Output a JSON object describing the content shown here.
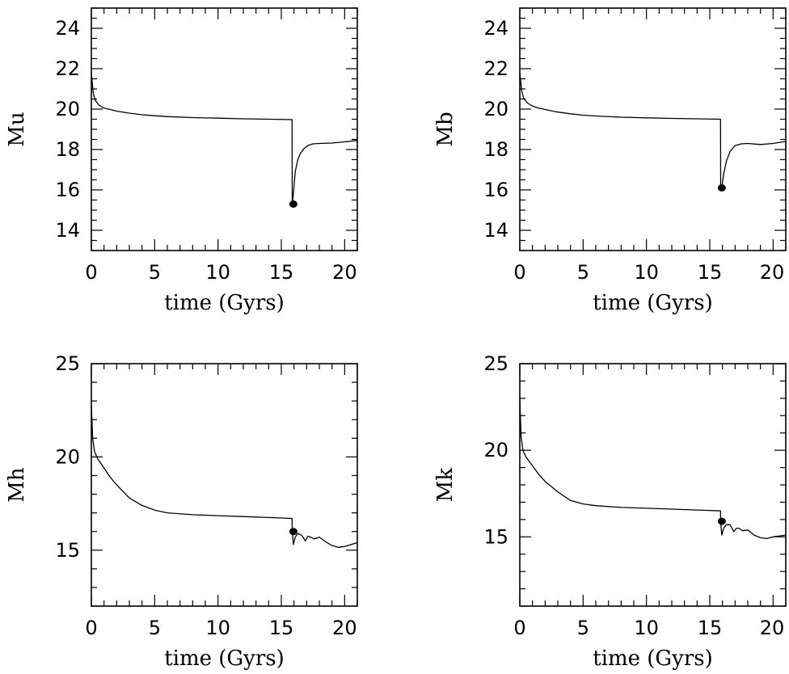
{
  "chart_data": [
    {
      "type": "line",
      "xlabel": "time (Gyrs)",
      "ylabel": "Mu",
      "xlim": [
        0,
        21
      ],
      "ylim": [
        13,
        25
      ],
      "x_ticks": [
        "0",
        "5",
        "10",
        "15",
        "20"
      ],
      "y_ticks": [
        "14",
        "16",
        "18",
        "20",
        "22",
        "24"
      ],
      "y_tick_values": [
        14,
        16,
        18,
        20,
        22,
        24
      ],
      "y_minor_step": 0.5,
      "series": [
        {
          "x": [
            0.0,
            0.15,
            0.3,
            0.6,
            1.0,
            1.5,
            2.0,
            3.0,
            4.0,
            5.0,
            6.0,
            8.0,
            10.0,
            12.0,
            14.0,
            15.85,
            15.86,
            15.95,
            16.1,
            16.3,
            16.5,
            16.8,
            17.1,
            17.5,
            18.0,
            19.0,
            20.0,
            21.0
          ],
          "y": [
            21.8,
            20.8,
            20.45,
            20.2,
            20.05,
            19.98,
            19.9,
            19.8,
            19.72,
            19.67,
            19.63,
            19.58,
            19.55,
            19.52,
            19.5,
            19.48,
            15.3,
            15.8,
            16.9,
            17.5,
            17.8,
            18.05,
            18.2,
            18.28,
            18.3,
            18.32,
            18.38,
            18.45
          ]
        }
      ],
      "marker": {
        "x": 15.95,
        "y": 15.3
      }
    },
    {
      "type": "line",
      "xlabel": "time (Gyrs)",
      "ylabel": "Mb",
      "xlim": [
        0,
        21
      ],
      "ylim": [
        13,
        25
      ],
      "x_ticks": [
        "0",
        "5",
        "10",
        "15",
        "20"
      ],
      "y_ticks": [
        "14",
        "16",
        "18",
        "20",
        "22",
        "24"
      ],
      "y_tick_values": [
        14,
        16,
        18,
        20,
        22,
        24
      ],
      "y_minor_step": 0.5,
      "series": [
        {
          "x": [
            0.0,
            0.15,
            0.3,
            0.6,
            1.0,
            1.5,
            2.0,
            3.0,
            4.0,
            5.0,
            6.0,
            8.0,
            10.0,
            12.0,
            14.0,
            15.85,
            15.86,
            15.95,
            16.1,
            16.3,
            16.6,
            17.0,
            17.5,
            18.0,
            19.0,
            20.0,
            21.0
          ],
          "y": [
            21.8,
            20.9,
            20.55,
            20.3,
            20.15,
            20.05,
            19.98,
            19.85,
            19.77,
            19.7,
            19.66,
            19.6,
            19.57,
            19.54,
            19.52,
            19.5,
            16.2,
            16.1,
            16.8,
            17.4,
            17.9,
            18.2,
            18.28,
            18.3,
            18.25,
            18.3,
            18.4
          ]
        }
      ],
      "marker": {
        "x": 15.95,
        "y": 16.1
      }
    },
    {
      "type": "line",
      "xlabel": "time (Gyrs)",
      "ylabel": "Mh",
      "xlim": [
        0,
        21
      ],
      "ylim": [
        12,
        25
      ],
      "x_ticks": [
        "0",
        "5",
        "10",
        "15",
        "20"
      ],
      "y_ticks": [
        "15",
        "20",
        "25"
      ],
      "y_tick_values": [
        15,
        20,
        25
      ],
      "y_minor_step": 1,
      "series": [
        {
          "x": [
            0.0,
            0.1,
            0.25,
            0.5,
            1.0,
            1.5,
            2.0,
            3.0,
            4.0,
            5.0,
            6.0,
            8.0,
            10.0,
            12.0,
            14.0,
            15.85,
            15.86,
            15.95,
            16.1,
            16.3,
            16.6,
            16.9,
            17.1,
            17.3,
            17.6,
            18.0,
            18.5,
            19.0,
            19.5,
            20.0,
            21.0
          ],
          "y": [
            22.8,
            21.0,
            20.3,
            19.9,
            19.4,
            18.9,
            18.5,
            17.8,
            17.4,
            17.15,
            17.0,
            16.9,
            16.85,
            16.8,
            16.75,
            16.7,
            16.1,
            15.3,
            15.7,
            15.9,
            15.8,
            15.5,
            15.75,
            15.7,
            15.6,
            15.7,
            15.45,
            15.25,
            15.15,
            15.2,
            15.4
          ]
        }
      ],
      "marker": {
        "x": 15.95,
        "y": 16.0
      }
    },
    {
      "type": "line",
      "xlabel": "time (Gyrs)",
      "ylabel": "Mk",
      "xlim": [
        0,
        21
      ],
      "ylim": [
        11,
        25
      ],
      "x_ticks": [
        "0",
        "5",
        "10",
        "15",
        "20"
      ],
      "y_ticks": [
        "15",
        "20",
        "25"
      ],
      "y_tick_values": [
        15,
        20,
        25
      ],
      "y_minor_step": 1,
      "series": [
        {
          "x": [
            0.0,
            0.1,
            0.25,
            0.5,
            1.0,
            1.5,
            2.0,
            3.0,
            4.0,
            5.0,
            6.0,
            8.0,
            10.0,
            12.0,
            14.0,
            15.85,
            15.86,
            15.95,
            16.1,
            16.3,
            16.6,
            16.9,
            17.1,
            17.3,
            17.6,
            18.0,
            18.5,
            19.0,
            19.5,
            20.0,
            21.0
          ],
          "y": [
            23.0,
            20.8,
            20.0,
            19.6,
            19.1,
            18.6,
            18.2,
            17.6,
            17.1,
            16.9,
            16.8,
            16.7,
            16.65,
            16.6,
            16.55,
            16.5,
            15.8,
            15.1,
            15.5,
            15.7,
            15.7,
            15.3,
            15.5,
            15.5,
            15.35,
            15.4,
            15.1,
            14.95,
            14.9,
            15.0,
            15.1
          ]
        }
      ],
      "marker": {
        "x": 15.95,
        "y": 15.9
      }
    }
  ]
}
